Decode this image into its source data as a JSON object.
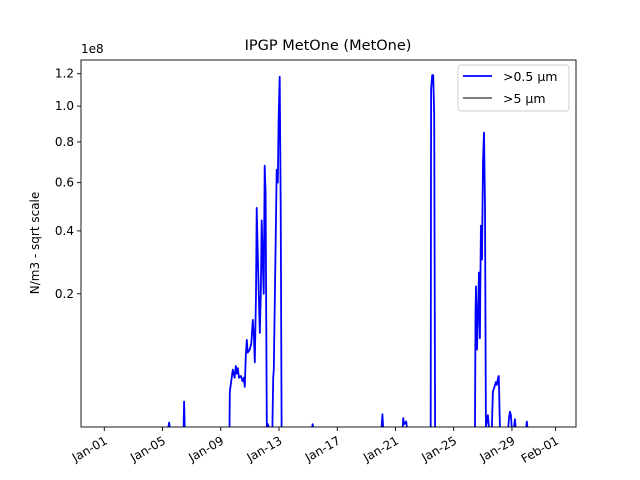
{
  "chart_data": {
    "type": "line",
    "title": "IPGP MetOne (MetOne)",
    "xlabel": "",
    "ylabel": "N/m3 - sqrt scale",
    "y_scale": "sqrt",
    "y_offset_text": "1e8",
    "y_multiplier": 100000000,
    "xlim_days_from_jan01": [
      -1.6,
      32.4
    ],
    "ylim": [
      0.003,
      1.29
    ],
    "x_ticks": [
      {
        "day": 0,
        "label": "Jan-01"
      },
      {
        "day": 4,
        "label": "Jan-05"
      },
      {
        "day": 8,
        "label": "Jan-09"
      },
      {
        "day": 12,
        "label": "Jan-13"
      },
      {
        "day": 16,
        "label": "Jan-17"
      },
      {
        "day": 20,
        "label": "Jan-21"
      },
      {
        "day": 24,
        "label": "Jan-25"
      },
      {
        "day": 28,
        "label": "Jan-29"
      },
      {
        "day": 31,
        "label": "Feb-01"
      }
    ],
    "y_ticks": [
      {
        "value": 0.2,
        "label": "0.2"
      },
      {
        "value": 0.4,
        "label": "0.4"
      },
      {
        "value": 0.6,
        "label": "0.6"
      },
      {
        "value": 0.8,
        "label": "0.8"
      },
      {
        "value": 1.0,
        "label": "1.0"
      },
      {
        "value": 1.2,
        "label": "1.2"
      }
    ],
    "legend": {
      "placement": "top-right"
    },
    "series": [
      {
        "name": ">0.5 µm",
        "color": "#0000ff",
        "segments": [
          [
            [
              4.4,
              0.003
            ],
            [
              4.45,
              0.0046
            ],
            [
              4.5,
              0.003
            ]
          ],
          [
            [
              5.45,
              0.003
            ],
            [
              5.48,
              0.0167
            ],
            [
              5.52,
              0.003
            ]
          ],
          [
            [
              8.6,
              0.003
            ],
            [
              8.62,
              0.025
            ],
            [
              8.75,
              0.04
            ],
            [
              8.83,
              0.05
            ],
            [
              8.95,
              0.04
            ],
            [
              9.03,
              0.055
            ],
            [
              9.1,
              0.045
            ],
            [
              9.17,
              0.052
            ],
            [
              9.25,
              0.04
            ],
            [
              9.38,
              0.042
            ],
            [
              9.5,
              0.036
            ],
            [
              9.58,
              0.04
            ],
            [
              9.65,
              0.03
            ],
            [
              9.72,
              0.07
            ],
            [
              9.79,
              0.097
            ],
            [
              9.85,
              0.075
            ],
            [
              9.99,
              0.08
            ],
            [
              10.1,
              0.09
            ],
            [
              10.2,
              0.137
            ],
            [
              10.28,
              0.1
            ],
            [
              10.34,
              0.06
            ],
            [
              10.42,
              0.2
            ],
            [
              10.47,
              0.49
            ],
            [
              10.55,
              0.3
            ],
            [
              10.68,
              0.11
            ],
            [
              10.75,
              0.2
            ],
            [
              10.81,
              0.44
            ],
            [
              10.88,
              0.3
            ],
            [
              10.95,
              0.2
            ],
            [
              11.02,
              0.68
            ],
            [
              11.08,
              0.55
            ],
            [
              11.16,
              0.003
            ],
            [
              11.23,
              0.004
            ],
            [
              11.3,
              0.003
            ]
          ],
          [
            [
              11.55,
              0.003
            ],
            [
              11.6,
              0.04
            ],
            [
              11.64,
              0.05
            ],
            [
              11.75,
              0.3
            ],
            [
              11.84,
              0.66
            ],
            [
              11.92,
              0.6
            ],
            [
              11.98,
              0.95
            ],
            [
              12.05,
              1.18
            ],
            [
              12.12,
              0.5
            ],
            [
              12.18,
              0.003
            ]
          ],
          [
            [
              14.28,
              0.003
            ],
            [
              14.31,
              0.004
            ],
            [
              14.35,
              0.003
            ]
          ],
          [
            [
              19.05,
              0.003
            ],
            [
              19.1,
              0.0085
            ],
            [
              19.15,
              0.003
            ]
          ],
          [
            [
              20.5,
              0.003
            ],
            [
              20.53,
              0.0065
            ],
            [
              20.6,
              0.004
            ],
            [
              20.74,
              0.005
            ],
            [
              20.78,
              0.003
            ]
          ],
          [
            [
              22.42,
              0.003
            ],
            [
              22.45,
              1.1
            ],
            [
              22.52,
              1.19
            ],
            [
              22.59,
              1.19
            ],
            [
              22.66,
              0.95
            ],
            [
              22.72,
              0.003
            ]
          ],
          [
            [
              25.46,
              0.003
            ],
            [
              25.5,
              0.15
            ],
            [
              25.53,
              0.22
            ],
            [
              25.6,
              0.08
            ],
            [
              25.67,
              0.15
            ],
            [
              25.74,
              0.26
            ],
            [
              25.8,
              0.1
            ],
            [
              25.87,
              0.42
            ],
            [
              25.94,
              0.3
            ],
            [
              26.01,
              0.7
            ],
            [
              26.08,
              0.85
            ],
            [
              26.15,
              0.5
            ],
            [
              26.21,
              0.003
            ],
            [
              26.3,
              0.006
            ],
            [
              26.35,
              0.008
            ],
            [
              26.42,
              0.003
            ]
          ],
          [
            [
              26.62,
              0.003
            ],
            [
              26.69,
              0.025
            ],
            [
              26.8,
              0.03
            ],
            [
              26.9,
              0.035
            ],
            [
              26.97,
              0.032
            ],
            [
              27.05,
              0.04
            ],
            [
              27.1,
              0.042
            ],
            [
              27.17,
              0.003
            ]
          ],
          [
            [
              27.75,
              0.003
            ],
            [
              27.79,
              0.006
            ],
            [
              27.86,
              0.01
            ],
            [
              27.93,
              0.008
            ],
            [
              27.98,
              0.003
            ]
          ],
          [
            [
              28.15,
              0.003
            ],
            [
              28.2,
              0.006
            ],
            [
              28.25,
              0.003
            ]
          ],
          [
            [
              28.98,
              0.003
            ],
            [
              29.02,
              0.005
            ],
            [
              29.06,
              0.003
            ]
          ]
        ]
      },
      {
        "name": ">5 µm",
        "color": "#6e6e6e",
        "segments": []
      }
    ]
  }
}
